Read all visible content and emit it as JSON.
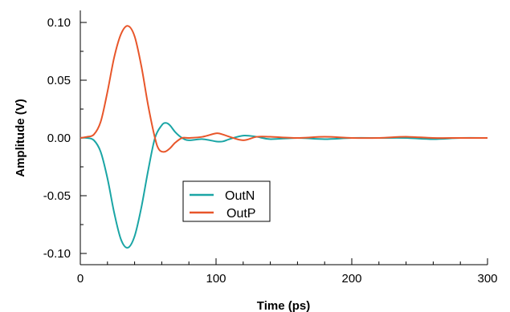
{
  "chart_data": {
    "type": "line",
    "xlabel": "Time (ps)",
    "ylabel": "Amplitude (V)",
    "xlim": [
      0,
      300
    ],
    "ylim": [
      -0.11,
      0.11
    ],
    "x_ticks": [
      0,
      100,
      200,
      300
    ],
    "x_tick_labels": [
      "0",
      "100",
      "200",
      "300"
    ],
    "y_ticks": [
      0.1,
      0.05,
      0.0,
      -0.05,
      -0.1
    ],
    "y_tick_labels": [
      "0.10",
      "0.05",
      "0.00",
      "-0.05",
      "-0.10"
    ],
    "grid": false,
    "legend_position": "lower-center",
    "series": [
      {
        "name": "OutN",
        "color": "#1aa5a5",
        "x": [
          0,
          5,
          10,
          15,
          20,
          25,
          30,
          35,
          40,
          45,
          50,
          55,
          60,
          63,
          66,
          70,
          75,
          80,
          90,
          100,
          105,
          110,
          120,
          130,
          140,
          160,
          180,
          200,
          220,
          240,
          260,
          280,
          300
        ],
        "y": [
          0.0,
          0.0,
          -0.002,
          -0.012,
          -0.035,
          -0.065,
          -0.088,
          -0.095,
          -0.085,
          -0.06,
          -0.028,
          0.0,
          0.011,
          0.013,
          0.011,
          0.005,
          0.0,
          -0.002,
          -0.001,
          -0.003,
          -0.003,
          -0.001,
          0.002,
          0.001,
          -0.001,
          0.0,
          -0.001,
          0.0,
          0.0,
          0.0,
          -0.001,
          0.0,
          0.0
        ]
      },
      {
        "name": "OutP",
        "color": "#e8562a",
        "x": [
          0,
          5,
          10,
          15,
          20,
          25,
          30,
          35,
          40,
          45,
          50,
          55,
          58,
          62,
          66,
          70,
          75,
          80,
          90,
          100,
          105,
          110,
          120,
          130,
          140,
          160,
          180,
          200,
          220,
          240,
          260,
          280,
          300
        ],
        "y": [
          0.0,
          0.001,
          0.003,
          0.014,
          0.04,
          0.07,
          0.09,
          0.097,
          0.088,
          0.062,
          0.028,
          0.0,
          -0.01,
          -0.012,
          -0.009,
          -0.004,
          0.0,
          0.0,
          0.001,
          0.004,
          0.003,
          0.001,
          -0.002,
          0.001,
          0.001,
          0.0,
          0.001,
          0.0,
          0.0,
          0.001,
          0.0,
          0.0,
          0.0
        ]
      }
    ]
  }
}
